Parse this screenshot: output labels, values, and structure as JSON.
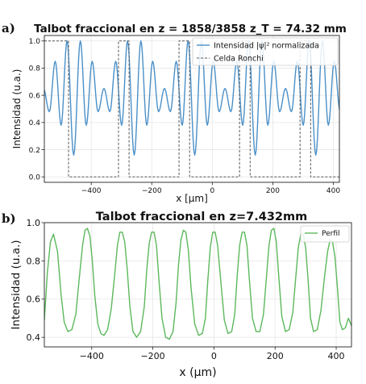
{
  "figure": {
    "background": "#ffffff"
  },
  "chart_data": [
    {
      "panel_label": "a)",
      "type": "line",
      "title": "Talbot fraccional en z = 1858/3858 z_T = 74.32 mm",
      "xlabel": "x [µm]",
      "ylabel": "Intensidad (u.a.)",
      "xlim": [
        -555,
        420
      ],
      "ylim": [
        -0.04,
        1.04
      ],
      "xticks": [
        -400,
        -200,
        0,
        200,
        400
      ],
      "yticks": [
        0.0,
        0.2,
        0.4,
        0.6,
        0.8,
        1.0
      ],
      "ytick_labels": [
        "0.0",
        "0.2",
        "0.4",
        "0.6",
        "0.8",
        "1.0"
      ],
      "grid": true,
      "legend_position": "top-right",
      "series": [
        {
          "name": "Intensidad |ψ|² normalizada",
          "style": "solid",
          "color": "#4a90c8",
          "kind": "talbot_intensity",
          "period_um": 200,
          "dip_centers_um": [
            -458,
            -258,
            -58,
            142,
            342
          ],
          "min_value": 0.16,
          "max_value": 1.0,
          "peak_values": [
            1.0,
            0.85,
            0.65,
            0.85,
            1.0
          ],
          "trough_values": [
            0.38,
            0.48,
            0.48,
            0.38
          ]
        },
        {
          "name": "Celda Ronchi",
          "style": "dashed",
          "color": "#555555",
          "kind": "square_wave",
          "high": 1.0,
          "low": 0.0,
          "low_intervals_um": [
            [
              -475,
              -310
            ],
            [
              -275,
              -110
            ],
            [
              -75,
              90
            ],
            [
              125,
              290
            ],
            [
              325,
              420
            ]
          ]
        }
      ]
    },
    {
      "panel_label": "b)",
      "type": "line",
      "title": "Talbot fraccional en z=7.432mm",
      "xlabel": "x (µm)",
      "ylabel": "Intensidad (u.a.)",
      "xlim": [
        -555,
        450
      ],
      "ylim": [
        0.35,
        1.0
      ],
      "xticks": [
        -400,
        -200,
        0,
        200,
        400
      ],
      "yticks": [
        0.4,
        0.6,
        0.8,
        1.0
      ],
      "ytick_labels": [
        "0.4",
        "0.6",
        "0.8",
        "1.0"
      ],
      "grid": true,
      "legend_position": "top-right",
      "series": [
        {
          "name": "Perfil",
          "style": "solid",
          "color": "#5cb85c",
          "kind": "sampled",
          "x": [
            -555,
            -545,
            -535,
            -525,
            -512,
            -500,
            -490,
            -478,
            -465,
            -452,
            -440,
            -430,
            -422,
            -414,
            -406,
            -398,
            -390,
            -380,
            -370,
            -360,
            -348,
            -336,
            -324,
            -316,
            -308,
            -300,
            -292,
            -284,
            -275,
            -265,
            -253,
            -240,
            -228,
            -220,
            -212,
            -204,
            -196,
            -188,
            -180,
            -170,
            -158,
            -146,
            -134,
            -124,
            -116,
            -108,
            -100,
            -92,
            -84,
            -75,
            -63,
            -50,
            -38,
            -28,
            -20,
            -12,
            -4,
            4,
            12,
            22,
            34,
            46,
            58,
            68,
            76,
            84,
            92,
            100,
            108,
            116,
            126,
            138,
            150,
            162,
            172,
            180,
            188,
            196,
            204,
            212,
            222,
            234,
            246,
            258,
            268,
            276,
            284,
            292,
            300,
            308,
            316,
            326,
            338,
            350,
            362,
            372,
            380,
            388,
            396,
            404,
            412,
            420,
            430,
            440,
            450
          ],
          "y": [
            0.49,
            0.74,
            0.9,
            0.94,
            0.85,
            0.62,
            0.48,
            0.43,
            0.44,
            0.52,
            0.72,
            0.88,
            0.96,
            0.97,
            0.93,
            0.8,
            0.62,
            0.47,
            0.42,
            0.41,
            0.44,
            0.55,
            0.74,
            0.88,
            0.95,
            0.95,
            0.9,
            0.76,
            0.56,
            0.43,
            0.4,
            0.43,
            0.56,
            0.75,
            0.89,
            0.95,
            0.95,
            0.88,
            0.7,
            0.5,
            0.4,
            0.39,
            0.43,
            0.58,
            0.78,
            0.91,
            0.96,
            0.95,
            0.86,
            0.66,
            0.47,
            0.41,
            0.42,
            0.5,
            0.7,
            0.87,
            0.95,
            0.95,
            0.88,
            0.7,
            0.49,
            0.42,
            0.43,
            0.52,
            0.72,
            0.88,
            0.95,
            0.95,
            0.88,
            0.7,
            0.5,
            0.43,
            0.43,
            0.52,
            0.72,
            0.88,
            0.96,
            0.97,
            0.9,
            0.72,
            0.51,
            0.43,
            0.44,
            0.53,
            0.72,
            0.87,
            0.94,
            0.94,
            0.87,
            0.7,
            0.5,
            0.43,
            0.44,
            0.54,
            0.72,
            0.85,
            0.91,
            0.9,
            0.82,
            0.66,
            0.48,
            0.44,
            0.45,
            0.5,
            0.46
          ]
        }
      ]
    }
  ]
}
